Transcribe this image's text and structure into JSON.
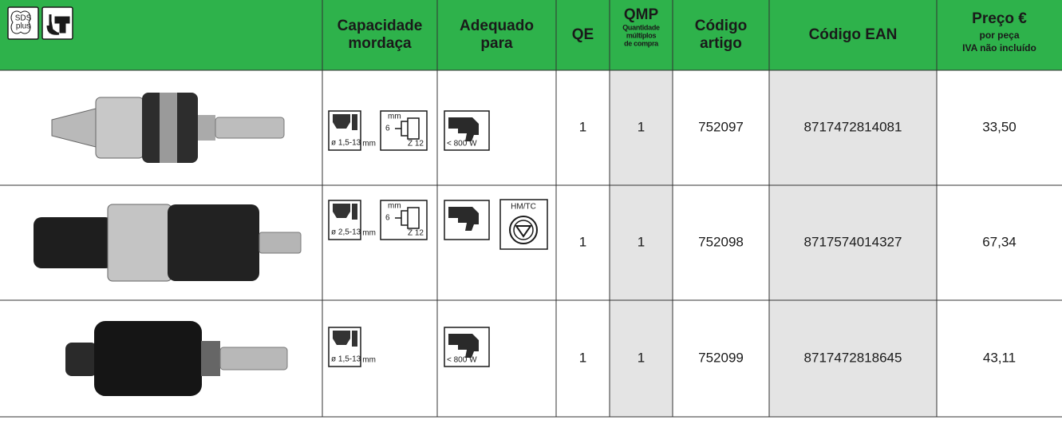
{
  "header": {
    "logo_text": [
      "SDS",
      "plus"
    ],
    "columns": [
      {
        "lines": [
          "Capacidade",
          "mordaça"
        ]
      },
      {
        "lines": [
          "Adequado",
          "para"
        ]
      },
      {
        "lines": [
          "QE"
        ]
      },
      {
        "lines": [
          "QMP"
        ],
        "sub": [
          "Quantidade",
          "múltiplos",
          "de compra"
        ]
      },
      {
        "lines": [
          "Código",
          "artigo"
        ]
      },
      {
        "lines": [
          "Código EAN"
        ]
      },
      {
        "lines": [
          "Preço €"
        ],
        "sub": [
          "por peça",
          "IVA não incluído"
        ]
      }
    ]
  },
  "rows": [
    {
      "chuck_range": "ø 1,5-13",
      "chuck_unit": "mm",
      "depth": "6",
      "depth_unit": "mm",
      "teeth": "Z 12",
      "power": "< 800 W",
      "qe": 1,
      "qmp": 1,
      "code": "752097",
      "ean": "8717472814081",
      "price": "33,50"
    },
    {
      "chuck_range": "ø 2,5-13",
      "chuck_unit": "mm",
      "depth": "6",
      "depth_unit": "mm",
      "teeth": "Z 12",
      "tool": "HM/TC",
      "qe": 1,
      "qmp": 1,
      "code": "752098",
      "ean": "8717574014327",
      "price": "67,34"
    },
    {
      "chuck_range": "ø 1,5-13",
      "chuck_unit": "mm",
      "power": "< 800 W",
      "qe": 1,
      "qmp": 1,
      "code": "752099",
      "ean": "8717472818645",
      "price": "43,11"
    }
  ]
}
